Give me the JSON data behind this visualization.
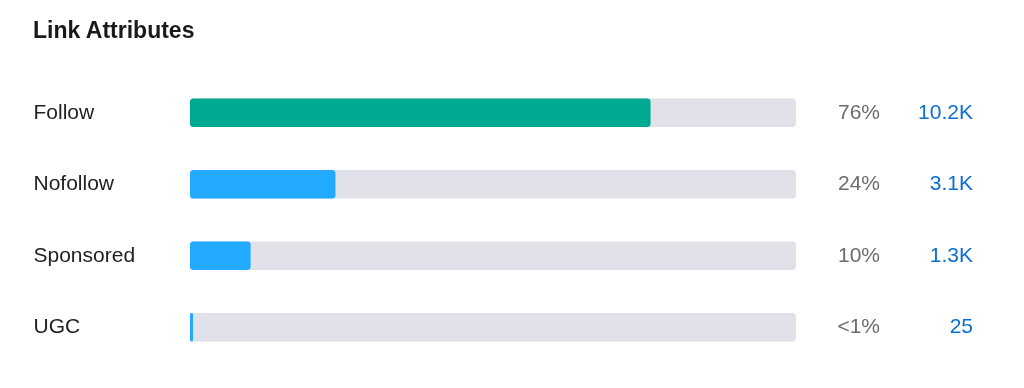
{
  "chart_data": {
    "type": "bar",
    "orientation": "horizontal",
    "title": "Link Attributes",
    "categories": [
      "Follow",
      "Nofollow",
      "Sponsored",
      "UGC"
    ],
    "values": [
      76,
      24,
      10,
      0.5
    ],
    "colors": [
      "#00aa92",
      "#22aaff",
      "#22aaff",
      "#22aaff"
    ],
    "value_labels": [
      "76%",
      "24%",
      "10%",
      "<1%"
    ],
    "annotations": [
      "10.2K",
      "3.1K",
      "1.3K",
      "25"
    ],
    "xlim": [
      0,
      100
    ],
    "tick_labels": "y",
    "grid": false,
    "legend": false
  }
}
